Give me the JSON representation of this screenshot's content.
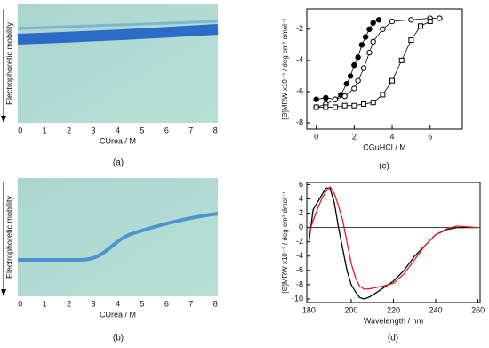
{
  "chart_data": [
    {
      "type": "gel",
      "label": "(a)",
      "xlabel": "CUrea / M",
      "ylabel": "Electrophoretic mobility",
      "xlim": [
        -0.1,
        8.1
      ],
      "xticks": [
        0,
        1,
        2,
        3,
        4,
        5,
        6,
        7,
        8
      ]
    },
    {
      "type": "gel",
      "label": "(b)",
      "xlabel": "CUrea / M",
      "ylabel": "Electrophoretic mobility",
      "xlim": [
        -0.1,
        8.1
      ],
      "xticks": [
        0,
        1,
        2,
        3,
        4,
        5,
        6,
        7,
        8
      ]
    },
    {
      "type": "scatter",
      "label": "(c)",
      "xlabel": "CGuHCl / M",
      "ylabel": "[Θ]MRW x10⁻³ / deg cm² dmol⁻¹",
      "xlim": [
        -0.5,
        7.7
      ],
      "xticks": [
        0,
        2,
        4,
        6
      ],
      "ylim": [
        -8.4,
        -0.7
      ],
      "yticks": [
        -8,
        -6,
        -4,
        -2
      ],
      "series": [
        {
          "marker": "filled-circle",
          "color": "#000000",
          "x": [
            0,
            0.5,
            1,
            1.3,
            1.6,
            1.8,
            2,
            2.2,
            2.4,
            2.6,
            2.8,
            3,
            3.3
          ],
          "values": [
            -6.5,
            -6.4,
            -6.5,
            -6.2,
            -5.5,
            -5,
            -4.3,
            -3.8,
            -3,
            -2.5,
            -2,
            -1.6,
            -1.4
          ]
        },
        {
          "marker": "open-circle",
          "color": "#000000",
          "x": [
            0,
            0.5,
            1,
            1.5,
            2,
            2.2,
            2.5,
            2.8,
            3,
            3.5,
            4,
            5,
            6,
            6.5
          ],
          "values": [
            -7,
            -6.8,
            -6.5,
            -6.3,
            -5.8,
            -5.3,
            -4.5,
            -3.5,
            -2.8,
            -2,
            -1.5,
            -1.4,
            -1.3,
            -1.3
          ]
        },
        {
          "marker": "open-square",
          "color": "#000000",
          "x": [
            0,
            0.5,
            1,
            1.5,
            2,
            2.5,
            3,
            3.5,
            4,
            4.5,
            5,
            5.5,
            6
          ],
          "values": [
            -7,
            -7,
            -7,
            -6.9,
            -6.9,
            -6.8,
            -6.7,
            -6.2,
            -5.3,
            -4,
            -2.7,
            -1.8,
            -1.5
          ]
        }
      ]
    },
    {
      "type": "line",
      "label": "(d)",
      "xlabel": "Wavelength / nm",
      "ylabel": "[Θ]MRW x10⁻³ / deg cm² dmol⁻¹",
      "xlim": [
        179,
        261
      ],
      "xticks": [
        180,
        200,
        220,
        240,
        260
      ],
      "ylim": [
        -10.5,
        6.3
      ],
      "yticks": [
        -10,
        -8,
        -6,
        -4,
        -2,
        0,
        2,
        4,
        6
      ],
      "zero_line": true,
      "x": [
        180,
        182,
        184,
        186,
        188,
        190,
        192,
        194,
        196,
        198,
        200,
        202,
        204,
        206,
        208,
        210,
        215,
        220,
        225,
        230,
        235,
        240,
        245,
        250,
        255,
        260
      ],
      "series": [
        {
          "color": "#000000",
          "values": [
            -2,
            2.5,
            3.5,
            4.5,
            5.5,
            5.5,
            3.5,
            0,
            -3,
            -6,
            -8,
            -9,
            -9.8,
            -10,
            -9.8,
            -9.5,
            -8.5,
            -7.5,
            -6,
            -4,
            -2.5,
            -1,
            -0.3,
            0,
            0,
            0
          ]
        },
        {
          "color": "#e02020",
          "values": [
            -1,
            1,
            2.5,
            4,
            5,
            5.7,
            4.8,
            3,
            1,
            -2,
            -5,
            -7,
            -8.2,
            -8.6,
            -8.6,
            -8.5,
            -8.2,
            -7.8,
            -6.5,
            -4.5,
            -2.5,
            -1,
            -0.2,
            0.2,
            0.1,
            0
          ]
        }
      ]
    }
  ]
}
